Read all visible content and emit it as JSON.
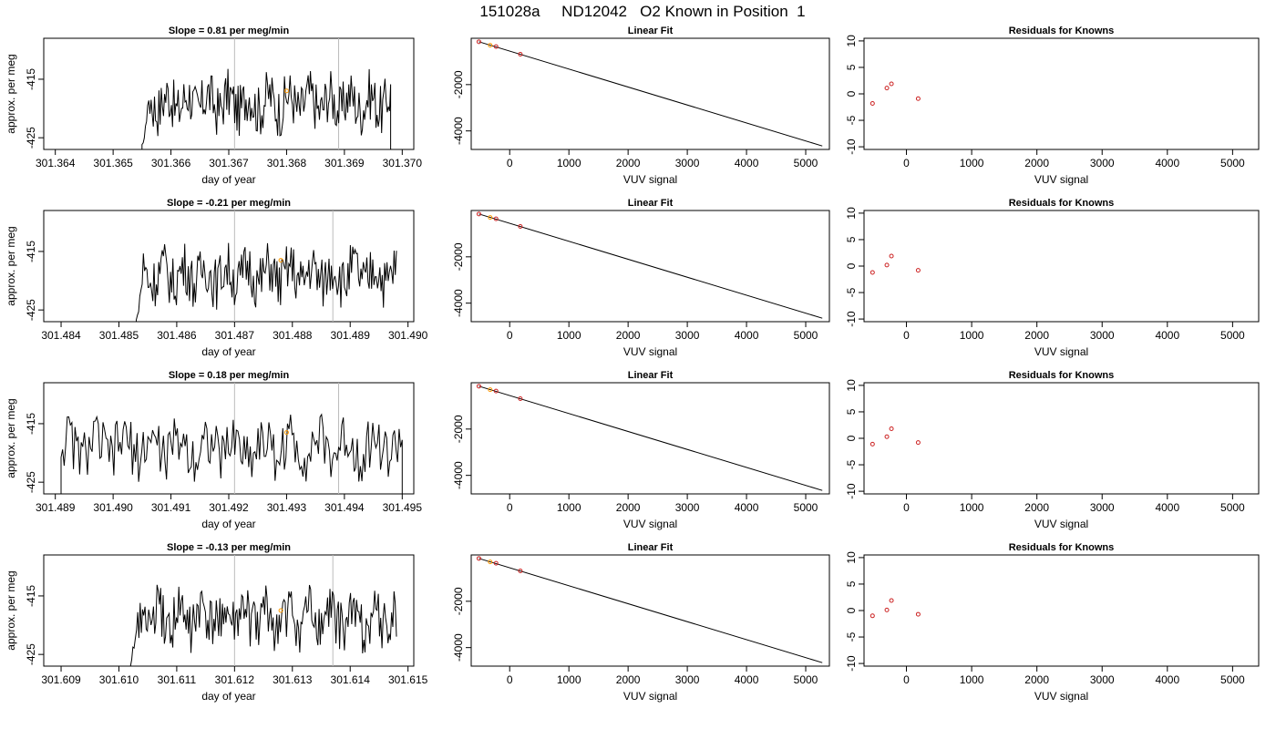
{
  "title": "151028a     ND12042   O2 Known in Position  1",
  "colors": {
    "line": "#000000",
    "marker": "#ff9900",
    "residual": "#cc2222",
    "vline": "#bbbbbb"
  },
  "chart_data": [
    {
      "type": "line",
      "title": "Slope =  0.81  per meg/min",
      "xlabel": "day of year",
      "ylabel": "approx. per meg",
      "xlim": [
        301.3638,
        301.3702
      ],
      "ylim": [
        -427,
        -408
      ],
      "xticks": [
        "301.364",
        "301.365",
        "301.366",
        "301.367",
        "301.368",
        "301.369",
        "301.370"
      ],
      "xtick_values": [
        301.364,
        301.365,
        301.366,
        301.367,
        301.368,
        301.369,
        301.37
      ],
      "yticks": [
        "-415",
        "-425"
      ],
      "ytick_values": [
        -415,
        -425
      ],
      "x_start": 301.3655,
      "x_end": 301.3698,
      "vlines": [
        301.3671,
        301.3689
      ],
      "marker": {
        "x": 301.368,
        "y": -417
      },
      "series_note": "noisy trace"
    },
    {
      "type": "line",
      "title": "Linear Fit",
      "xlabel": "VUV signal",
      "ylabel": "",
      "xlim": [
        -650,
        5400
      ],
      "ylim": [
        -4800,
        0
      ],
      "xticks": [
        "0",
        "1000",
        "2000",
        "3000",
        "4000",
        "5000"
      ],
      "xtick_values": [
        0,
        1000,
        2000,
        3000,
        4000,
        5000
      ],
      "yticks": [
        "-2000",
        "-4000"
      ],
      "ytick_values": [
        -2000,
        -4000
      ],
      "line": [
        [
          -520,
          -150
        ],
        [
          5280,
          -4650
        ]
      ],
      "points": [
        [
          -520,
          -150
        ],
        [
          -330,
          -300
        ],
        [
          -230,
          -360
        ],
        [
          180,
          -690
        ]
      ]
    },
    {
      "type": "scatter",
      "title": "Residuals for Knowns",
      "xlabel": "VUV signal",
      "ylabel": "",
      "xlim": [
        -650,
        5400
      ],
      "ylim": [
        -10.5,
        10.5
      ],
      "xticks": [
        "0",
        "1000",
        "2000",
        "3000",
        "4000",
        "5000"
      ],
      "xtick_values": [
        0,
        1000,
        2000,
        3000,
        4000,
        5000
      ],
      "yticks": [
        "-10",
        "-5",
        "0",
        "5",
        "10"
      ],
      "ytick_values": [
        -10,
        -5,
        0,
        5,
        10
      ],
      "points": [
        [
          -520,
          -1.8
        ],
        [
          -300,
          1.1
        ],
        [
          -230,
          1.9
        ],
        [
          180,
          -0.9
        ]
      ]
    },
    {
      "type": "line",
      "title": "Slope =  -0.21  per meg/min",
      "xlabel": "day of year",
      "ylabel": "approx. per meg",
      "xlim": [
        301.4837,
        301.4901
      ],
      "ylim": [
        -427,
        -408
      ],
      "xticks": [
        "301.484",
        "301.485",
        "301.486",
        "301.487",
        "301.488",
        "301.489",
        "301.490"
      ],
      "xtick_values": [
        301.484,
        301.485,
        301.486,
        301.487,
        301.488,
        301.489,
        301.49
      ],
      "yticks": [
        "-415",
        "-425"
      ],
      "ytick_values": [
        -415,
        -425
      ],
      "x_start": 301.4853,
      "x_end": 301.4898,
      "vlines": [
        301.487,
        301.4887
      ],
      "marker": {
        "x": 301.4878,
        "y": -416.5
      }
    },
    {
      "type": "line",
      "title": "Linear Fit",
      "xlabel": "VUV signal",
      "ylabel": "",
      "xlim": [
        -650,
        5400
      ],
      "ylim": [
        -4800,
        0
      ],
      "xticks": [
        "0",
        "1000",
        "2000",
        "3000",
        "4000",
        "5000"
      ],
      "xtick_values": [
        0,
        1000,
        2000,
        3000,
        4000,
        5000
      ],
      "yticks": [
        "-2000",
        "-4000"
      ],
      "ytick_values": [
        -2000,
        -4000
      ],
      "line": [
        [
          -520,
          -150
        ],
        [
          5280,
          -4650
        ]
      ],
      "points": [
        [
          -520,
          -150
        ],
        [
          -330,
          -300
        ],
        [
          -230,
          -360
        ],
        [
          180,
          -690
        ]
      ]
    },
    {
      "type": "scatter",
      "title": "Residuals for Knowns",
      "xlabel": "VUV signal",
      "ylabel": "",
      "xlim": [
        -650,
        5400
      ],
      "ylim": [
        -10.5,
        10.5
      ],
      "xticks": [
        "0",
        "1000",
        "2000",
        "3000",
        "4000",
        "5000"
      ],
      "xtick_values": [
        0,
        1000,
        2000,
        3000,
        4000,
        5000
      ],
      "yticks": [
        "-10",
        "-5",
        "0",
        "5",
        "10"
      ],
      "ytick_values": [
        -10,
        -5,
        0,
        5,
        10
      ],
      "points": [
        [
          -520,
          -1.2
        ],
        [
          -300,
          0.2
        ],
        [
          -230,
          1.9
        ],
        [
          180,
          -0.8
        ]
      ]
    },
    {
      "type": "line",
      "title": "Slope =  0.18  per meg/min",
      "xlabel": "day of year",
      "ylabel": "approx. per meg",
      "xlim": [
        301.4888,
        301.4952
      ],
      "ylim": [
        -427,
        -408
      ],
      "xticks": [
        "301.489",
        "301.490",
        "301.491",
        "301.492",
        "301.493",
        "301.494",
        "301.495"
      ],
      "xtick_values": [
        301.489,
        301.49,
        301.491,
        301.492,
        301.493,
        301.494,
        301.495
      ],
      "yticks": [
        "-415",
        "-425"
      ],
      "ytick_values": [
        -415,
        -425
      ],
      "x_start": 301.4891,
      "x_end": 301.495,
      "vlines": [
        301.4921,
        301.4939
      ],
      "marker": {
        "x": 301.493,
        "y": -416.5
      }
    },
    {
      "type": "line",
      "title": "Linear Fit",
      "xlabel": "VUV signal",
      "ylabel": "",
      "xlim": [
        -650,
        5400
      ],
      "ylim": [
        -4800,
        0
      ],
      "xticks": [
        "0",
        "1000",
        "2000",
        "3000",
        "4000",
        "5000"
      ],
      "xtick_values": [
        0,
        1000,
        2000,
        3000,
        4000,
        5000
      ],
      "yticks": [
        "-2000",
        "-4000"
      ],
      "ytick_values": [
        -2000,
        -4000
      ],
      "line": [
        [
          -520,
          -150
        ],
        [
          5280,
          -4650
        ]
      ],
      "points": [
        [
          -520,
          -150
        ],
        [
          -330,
          -300
        ],
        [
          -230,
          -360
        ],
        [
          180,
          -690
        ]
      ]
    },
    {
      "type": "scatter",
      "title": "Residuals for Knowns",
      "xlabel": "VUV signal",
      "ylabel": "",
      "xlim": [
        -650,
        5400
      ],
      "ylim": [
        -10.5,
        10.5
      ],
      "xticks": [
        "0",
        "1000",
        "2000",
        "3000",
        "4000",
        "5000"
      ],
      "xtick_values": [
        0,
        1000,
        2000,
        3000,
        4000,
        5000
      ],
      "yticks": [
        "-10",
        "-5",
        "0",
        "5",
        "10"
      ],
      "ytick_values": [
        -10,
        -5,
        0,
        5,
        10
      ],
      "points": [
        [
          -520,
          -1.1
        ],
        [
          -300,
          0.3
        ],
        [
          -230,
          1.8
        ],
        [
          180,
          -0.8
        ]
      ]
    },
    {
      "type": "line",
      "title": "Slope =  -0.13  per meg/min",
      "xlabel": "day of year",
      "ylabel": "approx. per meg",
      "xlim": [
        301.6087,
        301.6151
      ],
      "ylim": [
        -427,
        -408
      ],
      "xticks": [
        "301.609",
        "301.610",
        "301.611",
        "301.612",
        "301.613",
        "301.614",
        "301.615"
      ],
      "xtick_values": [
        301.609,
        301.61,
        301.611,
        301.612,
        301.613,
        301.614,
        301.615
      ],
      "yticks": [
        "-415",
        "-425"
      ],
      "ytick_values": [
        -415,
        -425
      ],
      "x_start": 301.6102,
      "x_end": 301.6148,
      "vlines": [
        301.612,
        301.6137
      ],
      "marker": {
        "x": 301.6128,
        "y": -417.5
      }
    },
    {
      "type": "line",
      "title": "Linear Fit",
      "xlabel": "VUV signal",
      "ylabel": "",
      "xlim": [
        -650,
        5400
      ],
      "ylim": [
        -4800,
        0
      ],
      "xticks": [
        "0",
        "1000",
        "2000",
        "3000",
        "4000",
        "5000"
      ],
      "xtick_values": [
        0,
        1000,
        2000,
        3000,
        4000,
        5000
      ],
      "yticks": [
        "-2000",
        "-4000"
      ],
      "ytick_values": [
        -2000,
        -4000
      ],
      "line": [
        [
          -520,
          -150
        ],
        [
          5280,
          -4650
        ]
      ],
      "points": [
        [
          -520,
          -150
        ],
        [
          -330,
          -300
        ],
        [
          -230,
          -360
        ],
        [
          180,
          -690
        ]
      ]
    },
    {
      "type": "scatter",
      "title": "Residuals for Knowns",
      "xlabel": "VUV signal",
      "ylabel": "",
      "xlim": [
        -650,
        5400
      ],
      "ylim": [
        -10.5,
        10.5
      ],
      "xticks": [
        "0",
        "1000",
        "2000",
        "3000",
        "4000",
        "5000"
      ],
      "xtick_values": [
        0,
        1000,
        2000,
        3000,
        4000,
        5000
      ],
      "yticks": [
        "-10",
        "-5",
        "0",
        "5",
        "10"
      ],
      "ytick_values": [
        -10,
        -5,
        0,
        5,
        10
      ],
      "points": [
        [
          -520,
          -1.0
        ],
        [
          -300,
          0.1
        ],
        [
          -230,
          1.9
        ],
        [
          180,
          -0.7
        ]
      ]
    }
  ]
}
